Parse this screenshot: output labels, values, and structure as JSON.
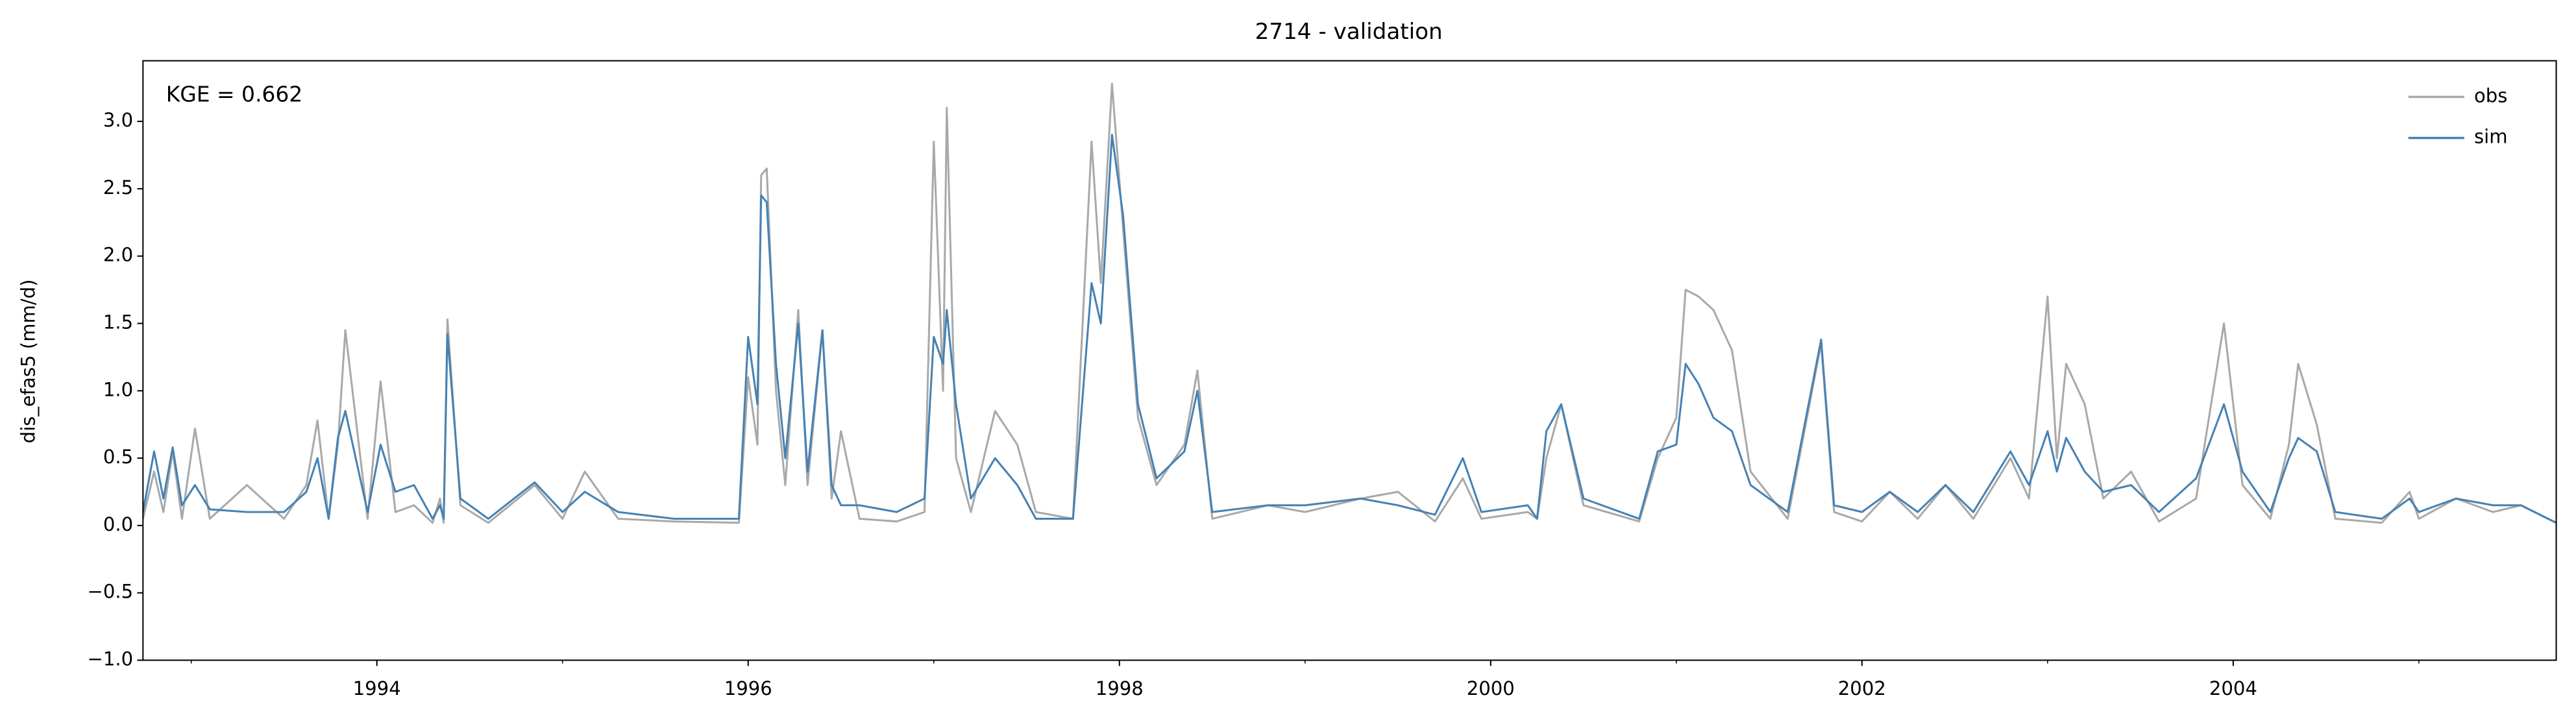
{
  "chart_data": {
    "type": "line",
    "title": "2714 - validation",
    "ylabel": "dis_efas5 (mm/d)",
    "annotation": "KGE = 0.662",
    "legend": "upper right",
    "x": [
      1992.74,
      1992.8,
      1992.85,
      1992.9,
      1992.95,
      1993.02,
      1993.1,
      1993.3,
      1993.5,
      1993.62,
      1993.68,
      1993.74,
      1993.79,
      1993.83,
      1993.95,
      1994.02,
      1994.1,
      1994.2,
      1994.3,
      1994.34,
      1994.36,
      1994.38,
      1994.45,
      1994.6,
      1994.85,
      1995.0,
      1995.12,
      1995.3,
      1995.6,
      1995.95,
      1996.0,
      1996.05,
      1996.07,
      1996.1,
      1996.15,
      1996.2,
      1996.27,
      1996.32,
      1996.4,
      1996.45,
      1996.5,
      1996.6,
      1996.8,
      1996.95,
      1997.0,
      1997.05,
      1997.07,
      1997.12,
      1997.2,
      1997.33,
      1997.45,
      1997.55,
      1997.75,
      1997.85,
      1997.9,
      1997.96,
      1998.02,
      1998.1,
      1998.2,
      1998.35,
      1998.42,
      1998.5,
      1998.8,
      1999.0,
      1999.3,
      1999.5,
      1999.7,
      1999.85,
      1999.95,
      2000.2,
      2000.25,
      2000.3,
      2000.38,
      2000.5,
      2000.8,
      2000.9,
      2001.0,
      2001.05,
      2001.12,
      2001.2,
      2001.3,
      2001.4,
      2001.6,
      2001.78,
      2001.85,
      2002.0,
      2002.15,
      2002.3,
      2002.45,
      2002.6,
      2002.8,
      2002.9,
      2003.0,
      2003.05,
      2003.1,
      2003.2,
      2003.3,
      2003.45,
      2003.6,
      2003.8,
      2003.95,
      2004.05,
      2004.2,
      2004.3,
      2004.35,
      2004.45,
      2004.55,
      2004.8,
      2004.95,
      2005.0,
      2005.2,
      2005.4,
      2005.55,
      2005.74
    ],
    "series": [
      {
        "name": "obs",
        "color": "#a9a9a9",
        "values": [
          0.05,
          0.4,
          0.1,
          0.55,
          0.05,
          0.72,
          0.05,
          0.3,
          0.05,
          0.3,
          0.78,
          0.05,
          0.6,
          1.45,
          0.05,
          1.07,
          0.1,
          0.15,
          0.02,
          0.2,
          0.02,
          1.53,
          0.15,
          0.02,
          0.3,
          0.05,
          0.4,
          0.05,
          0.03,
          0.02,
          1.1,
          0.6,
          2.6,
          2.65,
          1.0,
          0.3,
          1.6,
          0.3,
          1.45,
          0.2,
          0.7,
          0.05,
          0.03,
          0.1,
          2.85,
          1.0,
          3.1,
          0.5,
          0.1,
          0.85,
          0.6,
          0.1,
          0.05,
          2.85,
          1.8,
          3.28,
          2.2,
          0.8,
          0.3,
          0.6,
          1.15,
          0.05,
          0.15,
          0.1,
          0.2,
          0.25,
          0.03,
          0.35,
          0.05,
          0.1,
          0.05,
          0.5,
          0.9,
          0.15,
          0.03,
          0.5,
          0.8,
          1.75,
          1.7,
          1.6,
          1.3,
          0.4,
          0.05,
          1.35,
          0.1,
          0.03,
          0.25,
          0.05,
          0.3,
          0.05,
          0.5,
          0.2,
          1.7,
          0.5,
          1.2,
          0.9,
          0.2,
          0.4,
          0.03,
          0.2,
          1.5,
          0.3,
          0.05,
          0.6,
          1.2,
          0.75,
          0.05,
          0.02,
          0.25,
          0.05,
          0.2,
          0.1,
          0.15,
          0.02
        ]
      },
      {
        "name": "sim",
        "color": "#4682b4",
        "values": [
          0.1,
          0.55,
          0.2,
          0.58,
          0.15,
          0.3,
          0.12,
          0.1,
          0.1,
          0.25,
          0.5,
          0.05,
          0.65,
          0.85,
          0.1,
          0.6,
          0.25,
          0.3,
          0.05,
          0.15,
          0.05,
          1.42,
          0.2,
          0.05,
          0.32,
          0.1,
          0.25,
          0.1,
          0.05,
          0.05,
          1.4,
          0.9,
          2.45,
          2.4,
          1.2,
          0.5,
          1.5,
          0.4,
          1.45,
          0.3,
          0.15,
          0.15,
          0.1,
          0.2,
          1.4,
          1.2,
          1.6,
          0.9,
          0.2,
          0.5,
          0.3,
          0.05,
          0.05,
          1.8,
          1.5,
          2.9,
          2.3,
          0.9,
          0.35,
          0.55,
          1.0,
          0.1,
          0.15,
          0.15,
          0.2,
          0.15,
          0.08,
          0.5,
          0.1,
          0.15,
          0.05,
          0.7,
          0.9,
          0.2,
          0.05,
          0.55,
          0.6,
          1.2,
          1.05,
          0.8,
          0.7,
          0.3,
          0.1,
          1.38,
          0.15,
          0.1,
          0.25,
          0.1,
          0.3,
          0.1,
          0.55,
          0.3,
          0.7,
          0.4,
          0.65,
          0.4,
          0.25,
          0.3,
          0.1,
          0.35,
          0.9,
          0.4,
          0.1,
          0.5,
          0.65,
          0.55,
          0.1,
          0.05,
          0.2,
          0.1,
          0.2,
          0.15,
          0.15,
          0.02
        ]
      }
    ],
    "xlim": [
      1992.74,
      2005.74
    ],
    "xticks": [
      1994,
      1996,
      1998,
      2000,
      2002,
      2004
    ],
    "xminorticks": [
      1993,
      1995,
      1997,
      1999,
      2001,
      2003,
      2005
    ],
    "ylim": [
      -1,
      3.45
    ],
    "yticks": [
      {
        "value": -1,
        "label": "−1.0"
      },
      {
        "value": -0.5,
        "label": "−0.5"
      },
      {
        "value": 0,
        "label": "0.0"
      },
      {
        "value": 0.5,
        "label": "0.5"
      },
      {
        "value": 1,
        "label": "1.0"
      },
      {
        "value": 1.5,
        "label": "1.5"
      },
      {
        "value": 2,
        "label": "2.0"
      },
      {
        "value": 2.5,
        "label": "2.5"
      },
      {
        "value": 3,
        "label": "3.0"
      }
    ]
  }
}
